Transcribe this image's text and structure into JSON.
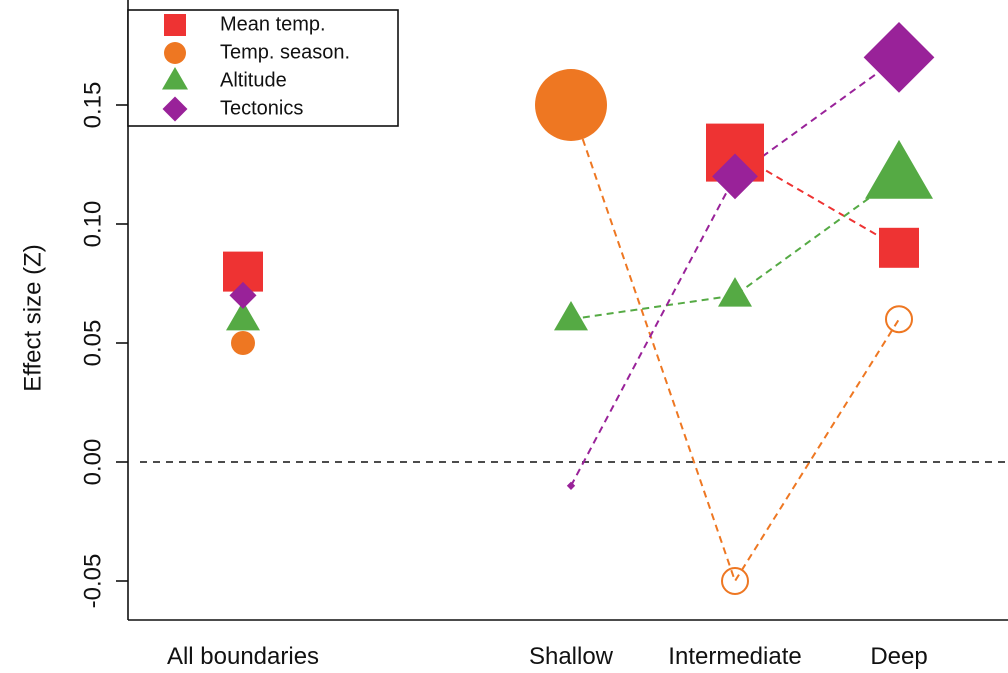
{
  "chart_data": {
    "type": "scatter",
    "title": "",
    "xlabel": "",
    "ylabel": "Effect size (Z)",
    "ylim": [
      -0.065,
      0.185
    ],
    "y_ticks": [
      -0.05,
      0.0,
      0.05,
      0.1,
      0.15
    ],
    "y_tick_labels": [
      "-0.05",
      "0.00",
      "0.05",
      "0.10",
      "0.15"
    ],
    "categories": [
      "All boundaries",
      "Shallow",
      "Intermediate",
      "Deep"
    ],
    "zero_line": true,
    "grid": false,
    "legend_position": "top-left",
    "series": [
      {
        "name": "Mean temp.",
        "shape": "square",
        "color": "#EE3333",
        "points": [
          {
            "category": "All boundaries",
            "value": 0.08,
            "size": "medium",
            "filled": true
          },
          {
            "category": "Intermediate",
            "value": 0.13,
            "size": "large",
            "filled": true
          },
          {
            "category": "Deep",
            "value": 0.09,
            "size": "medium",
            "filled": true
          }
        ],
        "connect": [
          "Intermediate",
          "Deep"
        ]
      },
      {
        "name": "Temp. season.",
        "shape": "circle",
        "color": "#EE7722",
        "points": [
          {
            "category": "All boundaries",
            "value": 0.05,
            "size": "small",
            "filled": true
          },
          {
            "category": "Shallow",
            "value": 0.15,
            "size": "large",
            "filled": true
          },
          {
            "category": "Intermediate",
            "value": -0.05,
            "size": "small",
            "filled": false
          },
          {
            "category": "Deep",
            "value": 0.06,
            "size": "small",
            "filled": false
          }
        ],
        "connect": [
          "Shallow",
          "Intermediate",
          "Deep"
        ]
      },
      {
        "name": "Altitude",
        "shape": "triangle",
        "color": "#55AA44",
        "points": [
          {
            "category": "All boundaries",
            "value": 0.06,
            "size": "small",
            "filled": true
          },
          {
            "category": "Shallow",
            "value": 0.06,
            "size": "small",
            "filled": true
          },
          {
            "category": "Intermediate",
            "value": 0.07,
            "size": "small",
            "filled": true
          },
          {
            "category": "Deep",
            "value": 0.12,
            "size": "large",
            "filled": true
          }
        ],
        "connect": [
          "Shallow",
          "Intermediate",
          "Deep"
        ]
      },
      {
        "name": "Tectonics",
        "shape": "diamond",
        "color": "#992299",
        "points": [
          {
            "category": "All boundaries",
            "value": 0.07,
            "size": "small",
            "filled": true
          },
          {
            "category": "Shallow",
            "value": -0.01,
            "size": "tiny",
            "filled": true
          },
          {
            "category": "Intermediate",
            "value": 0.12,
            "size": "medium",
            "filled": true
          },
          {
            "category": "Deep",
            "value": 0.17,
            "size": "large",
            "filled": true
          }
        ],
        "connect": [
          "Shallow",
          "Intermediate",
          "Deep"
        ]
      }
    ]
  }
}
